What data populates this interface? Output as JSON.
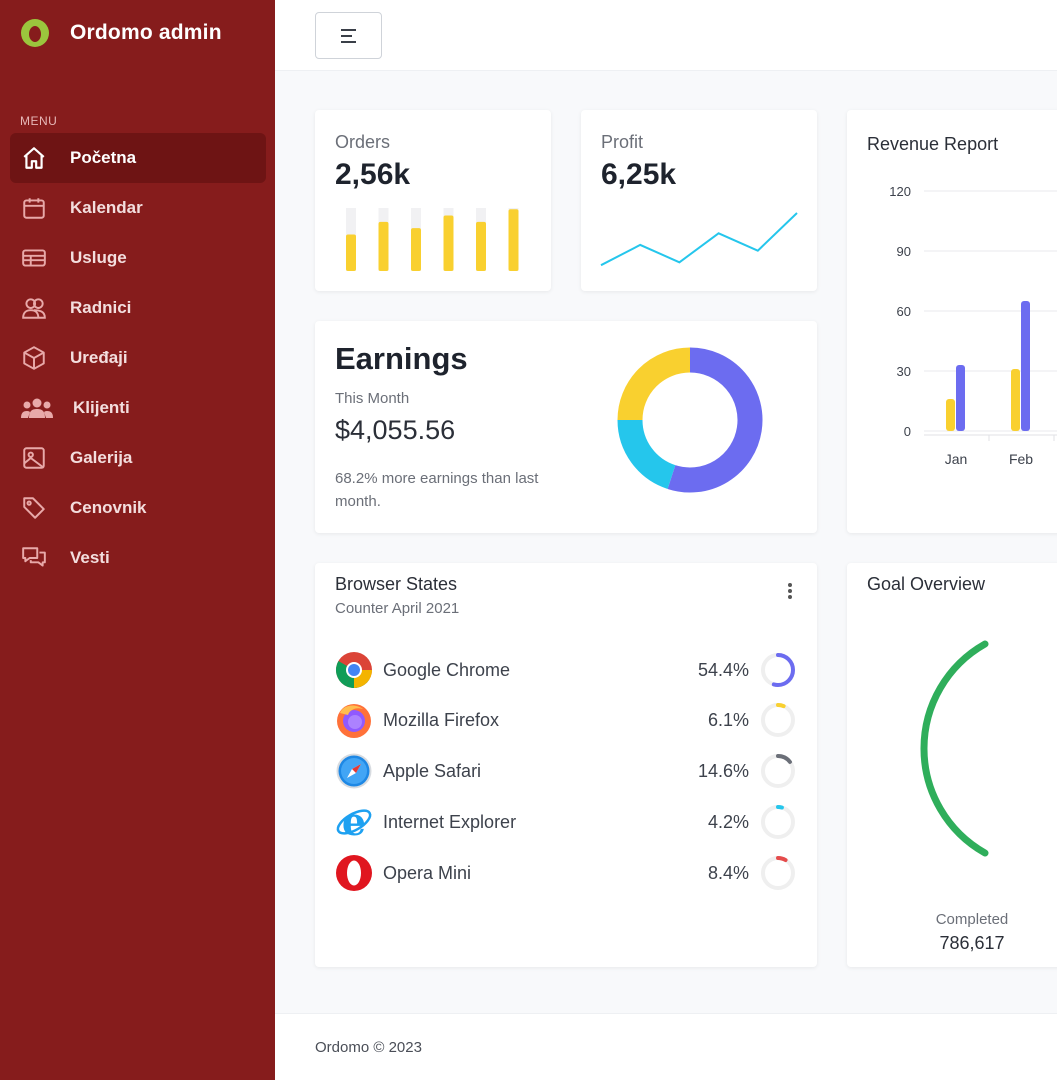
{
  "brand": {
    "name": "Ordomo admin"
  },
  "sidebar": {
    "menu_label": "MENU",
    "items": [
      {
        "label": "Početna",
        "icon": "home-icon",
        "active": true
      },
      {
        "label": "Kalendar",
        "icon": "calendar-icon"
      },
      {
        "label": "Usluge",
        "icon": "table-icon"
      },
      {
        "label": "Radnici",
        "icon": "users-icon"
      },
      {
        "label": "Uređaji",
        "icon": "box-icon"
      },
      {
        "label": "Klijenti",
        "icon": "clients-icon"
      },
      {
        "label": "Galerija",
        "icon": "image-icon"
      },
      {
        "label": "Cenovnik",
        "icon": "tag-icon"
      },
      {
        "label": "Vesti",
        "icon": "chat-icon"
      }
    ]
  },
  "colors": {
    "sidebar": "#861c1c",
    "active": "#6e1414",
    "yellow": "#f9d02f",
    "purple": "#6c6cf0",
    "cyan": "#25c6ec",
    "green": "#2fae5b"
  },
  "orders": {
    "label": "Orders",
    "value": "2,56k",
    "bars": [
      0.58,
      0.78,
      0.68,
      0.88,
      0.78,
      0.98
    ]
  },
  "profit": {
    "label": "Profit",
    "value": "6,25k",
    "line": [
      0.1,
      0.45,
      0.15,
      0.65,
      0.35,
      1.0
    ]
  },
  "earnings": {
    "title": "Earnings",
    "sub": "This Month",
    "amount": "$4,055.56",
    "note": "68.2% more earnings than last month.",
    "donut": [
      {
        "value": 55,
        "color": "#6c6cf0"
      },
      {
        "value": 20,
        "color": "#25c6ec"
      },
      {
        "value": 25,
        "color": "#f9d02f"
      }
    ]
  },
  "revenue": {
    "title": "Revenue Report",
    "chart_data": {
      "type": "bar",
      "categories": [
        "Jan",
        "Feb"
      ],
      "series": [
        {
          "values": [
            16,
            31
          ],
          "color": "#f9d02f"
        },
        {
          "values": [
            33,
            65
          ],
          "color": "#6c6cf0"
        }
      ],
      "yticks": [
        "120",
        "90",
        "60",
        "30",
        "0"
      ],
      "ylim": [
        0,
        120
      ]
    }
  },
  "browsers": {
    "title": "Browser States",
    "subtitle": "Counter April 2021",
    "items": [
      {
        "name": "Google Chrome",
        "pct": "54.4%",
        "value": 54.4,
        "color": "#6c6cf0",
        "icon": "chrome-icon"
      },
      {
        "name": "Mozilla Firefox",
        "pct": "6.1%",
        "value": 6.1,
        "color": "#f9d02f",
        "icon": "firefox-icon"
      },
      {
        "name": "Apple Safari",
        "pct": "14.6%",
        "value": 14.6,
        "color": "#6b6f78",
        "icon": "safari-icon"
      },
      {
        "name": "Internet Explorer",
        "pct": "4.2%",
        "value": 4.2,
        "color": "#25c6ec",
        "icon": "ie-icon"
      },
      {
        "name": "Opera Mini",
        "pct": "8.4%",
        "value": 8.4,
        "color": "#e54b4b",
        "icon": "opera-icon"
      }
    ]
  },
  "goal": {
    "title": "Goal Overview",
    "completed_label": "Completed",
    "completed_value": "786,617"
  },
  "footer": {
    "text": "Ordomo © 2023"
  }
}
